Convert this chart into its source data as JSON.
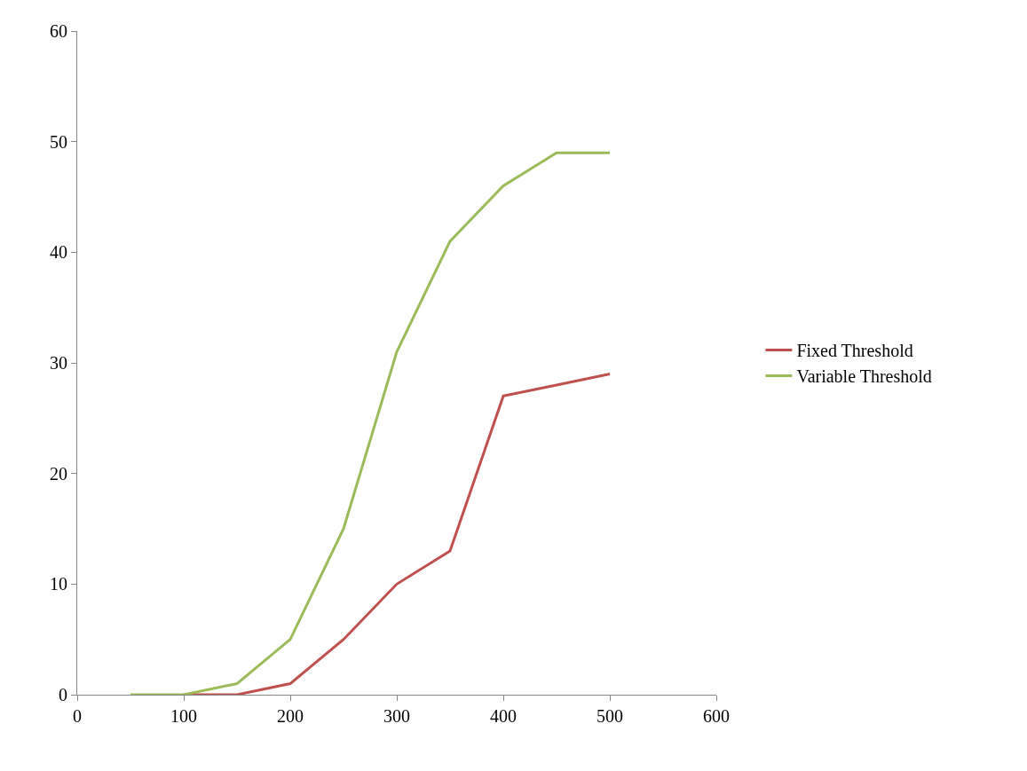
{
  "chart_data": {
    "type": "line",
    "xlim": [
      0,
      600
    ],
    "xticks": [
      0,
      100,
      200,
      300,
      400,
      500,
      600
    ],
    "ylim": [
      0,
      60
    ],
    "yticks": [
      0,
      10,
      20,
      30,
      40,
      50,
      60
    ],
    "legend": "right",
    "marker": "none",
    "line_style": "solid",
    "series": [
      {
        "name": "Fixed Threshold",
        "color": "#c0504d",
        "x": [
          100,
          150,
          200,
          250,
          300,
          350,
          400,
          450,
          500
        ],
        "values": [
          0,
          0,
          1,
          5,
          10,
          13,
          27,
          28,
          29
        ]
      },
      {
        "name": "Variable Threshold",
        "color": "#9bbb59",
        "x": [
          50,
          100,
          150,
          200,
          250,
          300,
          350,
          400,
          450,
          500
        ],
        "values": [
          0,
          0,
          1,
          5,
          15,
          31,
          41,
          46,
          49,
          49
        ]
      }
    ]
  }
}
